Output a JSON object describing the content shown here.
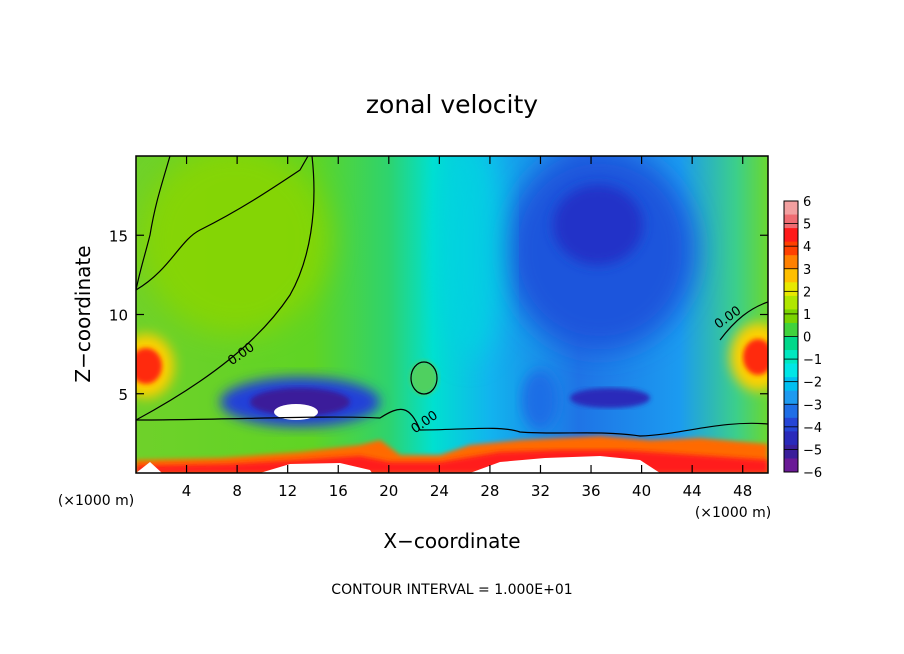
{
  "chart_data": {
    "type": "heatmap",
    "title": "zonal velocity",
    "xlabel": "X−coordinate",
    "ylabel": "Z−coordinate",
    "x_unit_left": "(×1000 m)",
    "x_unit_right": "(×1000 m)",
    "footer": "CONTOUR INTERVAL = 1.000E+01",
    "xlim": [
      0,
      50
    ],
    "ylim": [
      0,
      20
    ],
    "x_ticks": [
      4,
      8,
      12,
      16,
      20,
      24,
      28,
      32,
      36,
      40,
      44,
      48
    ],
    "x_tick_labels": [
      "4",
      "8",
      "12",
      "16",
      "20",
      "24",
      "28",
      "32",
      "36",
      "40",
      "44",
      "48"
    ],
    "y_ticks": [
      5,
      10,
      15
    ],
    "y_tick_labels": [
      "5",
      "10",
      "15"
    ],
    "contour_labels": [
      {
        "text": "0.00",
        "x": 8.5,
        "y": 7.3
      },
      {
        "text": "0.00",
        "x": 23.0,
        "y": 3.0
      },
      {
        "text": "0.00",
        "x": 47.0,
        "y": 9.6
      }
    ],
    "colorbar": {
      "labels": [
        "6",
        "5",
        "4",
        "3",
        "2",
        "1",
        "0",
        "−1",
        "−2",
        "−3",
        "−4",
        "−5",
        "−6"
      ],
      "colors": [
        "#f2a0a0",
        "#ef6c72",
        "#ff1a1a",
        "#ff4000",
        "#ff8000",
        "#ffbf00",
        "#e8e800",
        "#b0e600",
        "#7ad400",
        "#40d23c",
        "#00d88a",
        "#00e8c0",
        "#00e6e6",
        "#00bff0",
        "#1e9af0",
        "#1f6ee6",
        "#2545d6",
        "#2a2aba",
        "#3a1f9a",
        "#6a1a96"
      ]
    },
    "features": [
      {
        "desc": "positive jet (~+4)",
        "x": 1.0,
        "y": 7.0
      },
      {
        "desc": "positive jet (~+4)",
        "x": 48.8,
        "y": 7.3
      },
      {
        "desc": "negative core (~−4)",
        "x": 36.5,
        "y": 16.5
      },
      {
        "desc": "negative core (~−6)",
        "x": 13.0,
        "y": 4.0
      }
    ]
  }
}
